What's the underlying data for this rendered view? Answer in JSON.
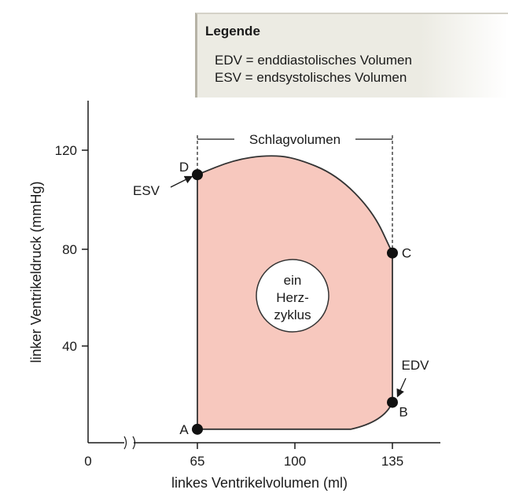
{
  "legend": {
    "title": "Legende",
    "entries": [
      "EDV = enddiastolisches Volumen",
      "ESV = endsystolisches Volumen"
    ]
  },
  "colors": {
    "loop_fill": "#f7c8be",
    "loop_stroke": "#333333",
    "legend_bg": "#ecebe3"
  },
  "chart_data": {
    "type": "line",
    "xlabel": "linkes Ventrikelvolumen (ml)",
    "ylabel": "linker Ventrikeldruck (mmHg)",
    "x_ticks": [
      "0",
      "65",
      "100",
      "135"
    ],
    "y_ticks": [
      "40",
      "80",
      "120"
    ],
    "xlim": [
      65,
      135
    ],
    "ylim": [
      0,
      120
    ],
    "axis_break": true,
    "points": [
      {
        "label": "A",
        "x": 65,
        "y": 6
      },
      {
        "label": "B",
        "x": 135,
        "y": 17
      },
      {
        "label": "C",
        "x": 135,
        "y": 78
      },
      {
        "label": "D",
        "x": 65,
        "y": 110
      }
    ],
    "loop_path": [
      [
        65,
        6
      ],
      [
        120,
        6
      ],
      [
        132,
        9
      ],
      [
        135,
        17
      ],
      [
        135,
        78
      ],
      [
        128,
        95
      ],
      [
        115,
        110
      ],
      [
        100,
        117
      ],
      [
        90,
        118
      ],
      [
        78,
        116
      ],
      [
        65,
        110
      ],
      [
        65,
        6
      ]
    ],
    "annotations": {
      "stroke_volume": "Schlagvolumen",
      "center_lines": [
        "ein",
        "Herz-",
        "zyklus"
      ],
      "esv": "ESV",
      "edv": "EDV"
    }
  }
}
